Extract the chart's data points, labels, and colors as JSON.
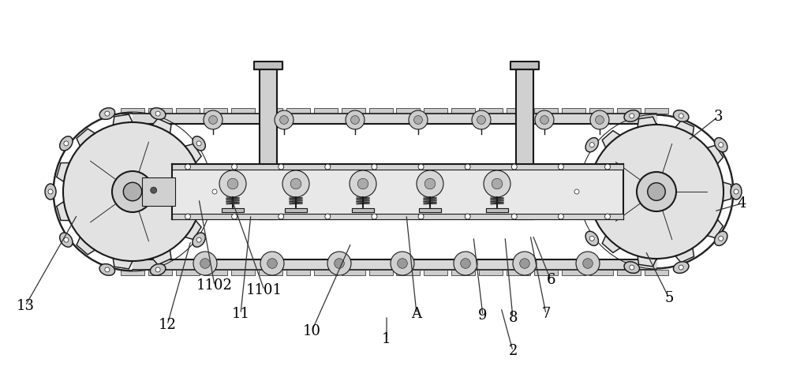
{
  "bg_color": "#ffffff",
  "line_color": "#1a1a1a",
  "figsize": [
    10.0,
    4.78
  ],
  "dpi": 100,
  "labels_info": [
    [
      "1",
      490,
      430,
      490,
      400
    ],
    [
      "2",
      650,
      445,
      635,
      390
    ],
    [
      "3",
      910,
      148,
      872,
      178
    ],
    [
      "4",
      940,
      258,
      905,
      268
    ],
    [
      "5",
      848,
      378,
      818,
      318
    ],
    [
      "6",
      698,
      355,
      675,
      298
    ],
    [
      "7",
      692,
      398,
      672,
      298
    ],
    [
      "8",
      650,
      403,
      640,
      300
    ],
    [
      "9",
      612,
      400,
      600,
      300
    ],
    [
      "A",
      528,
      398,
      515,
      272
    ],
    [
      "10",
      395,
      420,
      445,
      308
    ],
    [
      "11",
      305,
      398,
      318,
      272
    ],
    [
      "1101",
      335,
      368,
      292,
      248
    ],
    [
      "1102",
      272,
      362,
      252,
      252
    ],
    [
      "12",
      212,
      412,
      242,
      305
    ],
    [
      "13",
      32,
      388,
      98,
      272
    ]
  ]
}
